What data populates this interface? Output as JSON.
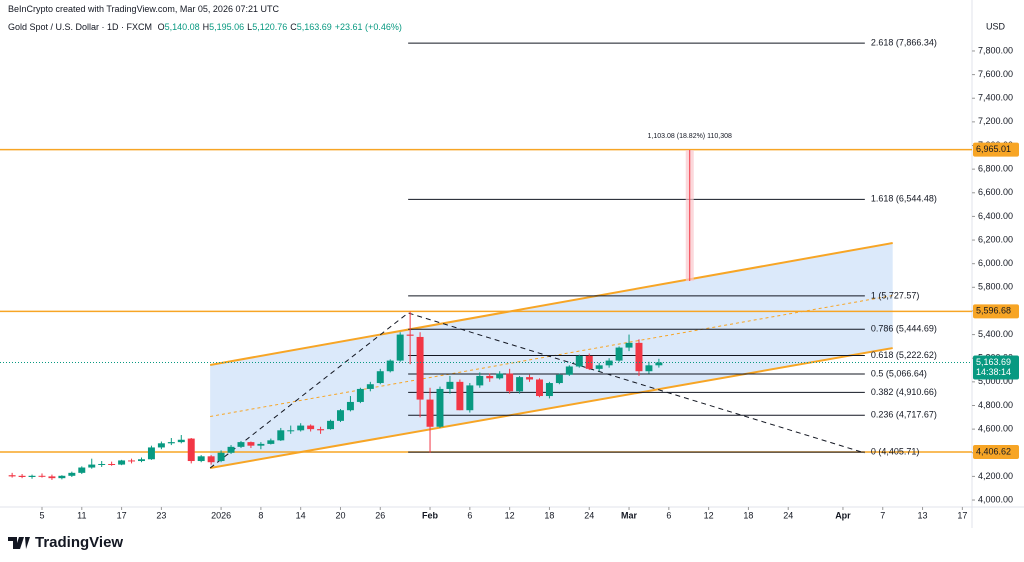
{
  "header": {
    "credit": "BeInCrypto created with TradingView.com, Mar 05, 2026 07:21 UTC",
    "symbol": "Gold Spot / U.S. Dollar · 1D · FXCM",
    "ohlc": [
      {
        "key": "O",
        "value": "5,140.08"
      },
      {
        "key": "H",
        "value": "5,195.06"
      },
      {
        "key": "L",
        "value": "5,120.76"
      },
      {
        "key": "C",
        "value": "5,163.69"
      }
    ],
    "change": "+23.61 (+0.46%)"
  },
  "chart_data": {
    "type": "candlestick",
    "x": [
      -3,
      -2,
      -1,
      0,
      1,
      2,
      3,
      4,
      5,
      6,
      7,
      8,
      9,
      10,
      11,
      12,
      13,
      14,
      15,
      16,
      17,
      18,
      19,
      20,
      21,
      22,
      23,
      24,
      25,
      26,
      27,
      28,
      29,
      30,
      31,
      32,
      33,
      34,
      35,
      36,
      37,
      38,
      39,
      40,
      41,
      42,
      43,
      44,
      45,
      46,
      47,
      48,
      49,
      50,
      51,
      52,
      53,
      54,
      55,
      56,
      57,
      58,
      59,
      60,
      61,
      62
    ],
    "open": [
      4210,
      4205,
      4195,
      4205,
      4200,
      4185,
      4205,
      4230,
      4275,
      4300,
      4305,
      4300,
      4335,
      4330,
      4345,
      4445,
      4480,
      4490,
      4520,
      4330,
      4370,
      4330,
      4400,
      4450,
      4490,
      4460,
      4475,
      4505,
      4590,
      4590,
      4630,
      4600,
      4600,
      4670,
      4760,
      4830,
      4940,
      4990,
      5090,
      5180,
      5400,
      5380,
      4850,
      4620,
      4940,
      5000,
      4760,
      4970,
      5050,
      5030,
      5070,
      4920,
      5040,
      5020,
      4880,
      4990,
      5060,
      5130,
      5220,
      5110,
      5140,
      5180,
      5290,
      5330,
      5090,
      5140.08
    ],
    "high": [
      4230,
      4220,
      4215,
      4225,
      4215,
      4210,
      4240,
      4285,
      4350,
      4330,
      4325,
      4340,
      4350,
      4360,
      4460,
      4495,
      4525,
      4550,
      4525,
      4380,
      4380,
      4420,
      4465,
      4500,
      4495,
      4490,
      4520,
      4610,
      4630,
      4650,
      4640,
      4620,
      4680,
      4770,
      4880,
      4950,
      5000,
      5110,
      5190,
      5420,
      5595,
      5420,
      4950,
      4960,
      5050,
      5020,
      4990,
      5080,
      5070,
      5090,
      5110,
      5050,
      5060,
      5030,
      5000,
      5070,
      5140,
      5230,
      5240,
      5160,
      5200,
      5300,
      5400,
      5360,
      5170,
      5195.06
    ],
    "low": [
      4190,
      4185,
      4180,
      4190,
      4170,
      4175,
      4195,
      4220,
      4265,
      4280,
      4290,
      4295,
      4310,
      4320,
      4340,
      4430,
      4465,
      4480,
      4310,
      4320,
      4300,
      4320,
      4390,
      4440,
      4440,
      4430,
      4470,
      4500,
      4560,
      4580,
      4580,
      4560,
      4595,
      4660,
      4750,
      4820,
      4920,
      4980,
      5080,
      5170,
      5150,
      4700,
      4400,
      4610,
      4900,
      4760,
      4740,
      4950,
      5000,
      5020,
      4900,
      4900,
      5000,
      4870,
      4860,
      4980,
      5050,
      5120,
      5100,
      5090,
      5120,
      5170,
      5260,
      5050,
      5070,
      5120.76
    ],
    "close": [
      4200,
      4195,
      4205,
      4200,
      4185,
      4205,
      4230,
      4275,
      4300,
      4305,
      4300,
      4335,
      4330,
      4345,
      4445,
      4480,
      4490,
      4510,
      4330,
      4370,
      4320,
      4400,
      4450,
      4490,
      4460,
      4475,
      4505,
      4590,
      4590,
      4630,
      4600,
      4590,
      4670,
      4760,
      4830,
      4940,
      4980,
      5090,
      5180,
      5400,
      5390,
      4850,
      4620,
      4940,
      5000,
      4760,
      4970,
      5050,
      5030,
      5070,
      4920,
      5040,
      5020,
      4880,
      4990,
      5060,
      5130,
      5220,
      5110,
      5140,
      5180,
      5290,
      5330,
      5090,
      5140,
      5163.69
    ],
    "up_color": "#089981",
    "down_color": "#f23645",
    "xlim": [
      -4.22,
      93.47
    ],
    "ylim": [
      3941,
      8079
    ],
    "xticks": [
      {
        "value": 0,
        "label": "5"
      },
      {
        "value": 4,
        "label": "11"
      },
      {
        "value": 8,
        "label": "17"
      },
      {
        "value": 12,
        "label": "23"
      },
      {
        "value": 18,
        "label": "2026"
      },
      {
        "value": 22,
        "label": "8"
      },
      {
        "value": 26,
        "label": "14"
      },
      {
        "value": 30,
        "label": "20"
      },
      {
        "value": 34,
        "label": "26"
      },
      {
        "value": 39,
        "label": "Feb"
      },
      {
        "value": 43,
        "label": "6"
      },
      {
        "value": 47,
        "label": "12"
      },
      {
        "value": 51,
        "label": "18"
      },
      {
        "value": 55,
        "label": "24"
      },
      {
        "value": 59,
        "label": "Mar"
      },
      {
        "value": 63,
        "label": "6"
      },
      {
        "value": 67,
        "label": "12"
      },
      {
        "value": 71,
        "label": "18"
      },
      {
        "value": 75,
        "label": "24"
      },
      {
        "value": 80.5,
        "label": "Apr"
      },
      {
        "value": 84.5,
        "label": "7"
      },
      {
        "value": 88.5,
        "label": "13"
      },
      {
        "value": 92.5,
        "label": "17"
      }
    ],
    "yticks": [
      {
        "value": 4000,
        "label": "4,000.00"
      },
      {
        "value": 4200,
        "label": "4,200.00"
      },
      {
        "value": 4400,
        "label": "4,400.00"
      },
      {
        "value": 4600,
        "label": "4,600.00"
      },
      {
        "value": 4800,
        "label": "4,800.00"
      },
      {
        "value": 5000,
        "label": "5,000.00"
      },
      {
        "value": 5200,
        "label": "5,200.00"
      },
      {
        "value": 5400,
        "label": "5,400.00"
      },
      {
        "value": 5600,
        "label": "5,600.00"
      },
      {
        "value": 5800,
        "label": "5,800.00"
      },
      {
        "value": 6000,
        "label": "6,000.00"
      },
      {
        "value": 6200,
        "label": "6,200.00"
      },
      {
        "value": 6400,
        "label": "6,400.00"
      },
      {
        "value": 6600,
        "label": "6,600.00"
      },
      {
        "value": 6800,
        "label": "6,800.00"
      },
      {
        "value": 7000,
        "label": "7,000.00"
      },
      {
        "value": 7200,
        "label": "7,200.00"
      },
      {
        "value": 7400,
        "label": "7,400.00"
      },
      {
        "value": 7600,
        "label": "7,600.00"
      },
      {
        "value": 7800,
        "label": "7,800.00"
      }
    ],
    "currency": "USD",
    "levels": [
      {
        "value": 6965.01,
        "label": "6,965.01"
      },
      {
        "value": 5596.68,
        "label": "5,596.68"
      },
      {
        "value": 4406.62,
        "label": "4,406.62"
      }
    ],
    "level_color": "#f7a525",
    "channel": {
      "x": [
        16.9,
        85.5
      ],
      "upper": [
        5143,
        6175
      ],
      "lower": [
        4271,
        5286
      ],
      "color": "#f7a525",
      "fill": "#cfe2f8"
    },
    "trend_line": {
      "x": [
        16.9,
        36.8,
        82.7
      ],
      "y": [
        4271,
        5583,
        4398
      ]
    },
    "fib": {
      "x": [
        36.8,
        82.7
      ],
      "levels": [
        {
          "value": 7866.34,
          "label": "2.618 (7,866.34)"
        },
        {
          "value": 6544.48,
          "label": "1.618 (6,544.48)"
        },
        {
          "value": 5727.57,
          "label": "1 (5,727.57)"
        },
        {
          "value": 5444.69,
          "label": "0.786 (5,444.69)"
        },
        {
          "value": 5222.62,
          "label": "0.618 (5,222.62)"
        },
        {
          "value": 5066.64,
          "label": "0.5 (5,066.64)"
        },
        {
          "value": 4910.66,
          "label": "0.382 (4,910.66)"
        },
        {
          "value": 4717.67,
          "label": "0.236 (4,717.67)"
        },
        {
          "value": 4405.71,
          "label": "0 (4,405.71)"
        }
      ]
    },
    "measure": {
      "x": 65.1,
      "from": 5853,
      "to": 6962,
      "label": "1,103.08 (18.82%) 110,308"
    },
    "last_price": {
      "value": 5163.69,
      "label": "5,163.69",
      "countdown": "14:38:14"
    }
  },
  "footer": {
    "brand": "TradingView"
  }
}
